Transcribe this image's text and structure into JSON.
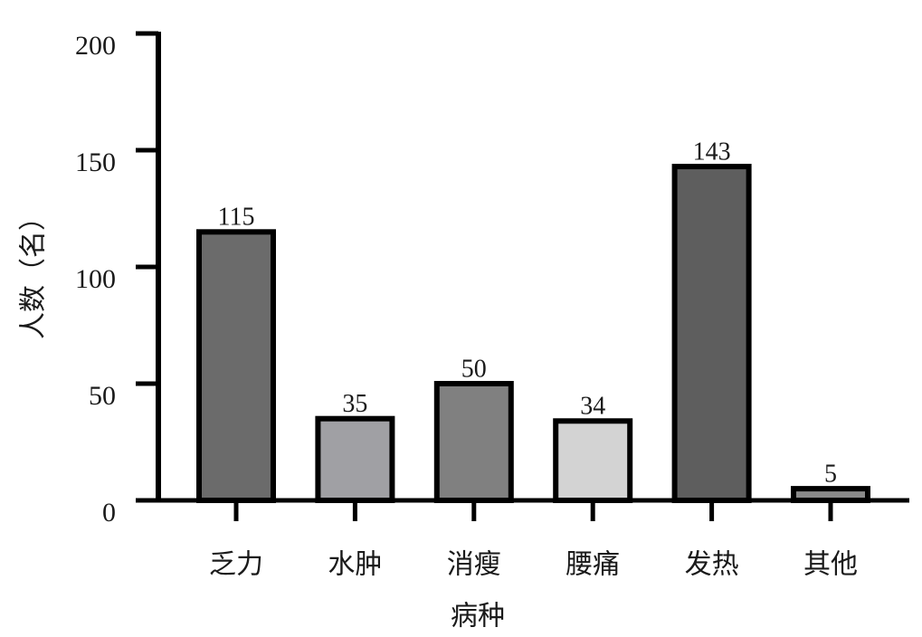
{
  "chart_data": {
    "type": "bar",
    "xlabel": "病种",
    "ylabel": "人数（名）",
    "categories": [
      "乏力",
      "水肿",
      "消瘦",
      "腰痛",
      "发热",
      "其他"
    ],
    "values": [
      115,
      35,
      50,
      34,
      143,
      5
    ],
    "colors": [
      "#6b6b6b",
      "#a0a0a4",
      "#808080",
      "#d3d3d3",
      "#5e5e5e",
      "#8a8a8a"
    ],
    "ylim": [
      0,
      200
    ],
    "yticks": [
      0,
      50,
      100,
      150,
      200
    ]
  }
}
